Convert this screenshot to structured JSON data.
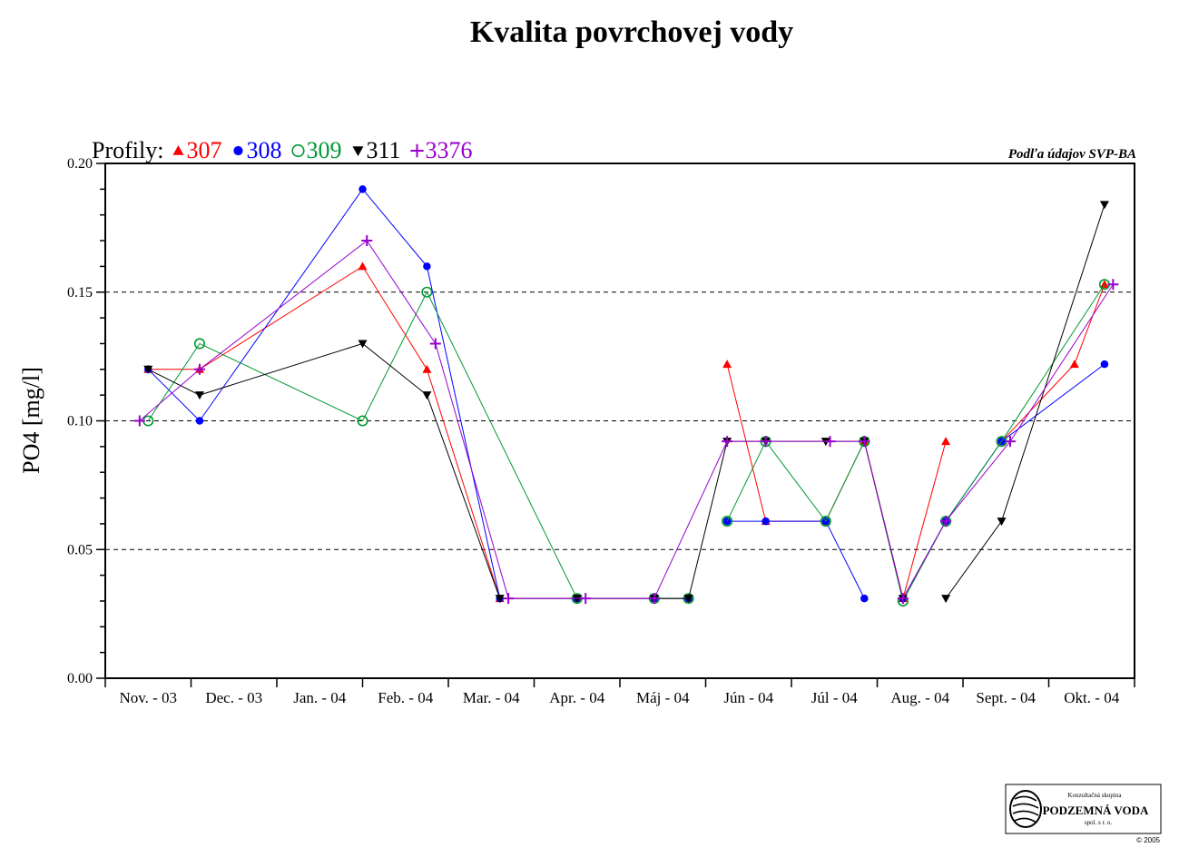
{
  "chart_data": {
    "type": "line",
    "title": "Kvalita povrchovej vody",
    "ylabel": "PO4 [mg/l]",
    "source_note": "Podľa údajov SVP-BA",
    "legend_prefix": "Profily:",
    "ylim": [
      0,
      0.2
    ],
    "yticks": [
      "0.00",
      "0.05",
      "0.10",
      "0.15",
      "0.20"
    ],
    "ytick_values": [
      0,
      0.05,
      0.1,
      0.15,
      0.2
    ],
    "grid": "dashed horizontal at 0.05, 0.10, 0.15",
    "legend_position": "top-left",
    "categories": [
      "Nov. - 03",
      "Dec. - 03",
      "Jan. - 04",
      "Feb. - 04",
      "Mar. - 04",
      "Apr. - 04",
      "Máj - 04",
      "Jún - 04",
      "Júl - 04",
      "Aug. - 04",
      "Sept. - 04",
      "Okt. - 04"
    ],
    "series": [
      {
        "name": "307",
        "color": "#ff0000",
        "marker": "triangle-up",
        "points": [
          {
            "x": 0.5,
            "y": 0.12
          },
          {
            "x": 1.1,
            "y": 0.12
          },
          {
            "x": 3.0,
            "y": 0.16
          },
          {
            "x": 3.75,
            "y": 0.12
          },
          {
            "x": 4.6,
            "y": 0.031
          },
          {
            "x": 5.5,
            "y": 0.031
          },
          {
            "x": 6.4,
            "y": 0.031
          },
          {
            "x": 6.8,
            "y": 0.031
          },
          {
            "x": 7.25,
            "y": 0.122
          },
          {
            "x": 7.7,
            "y": 0.061
          },
          {
            "x": 8.4,
            "y": 0.061
          },
          {
            "x": 8.85,
            "y": 0.092
          },
          {
            "x": 9.3,
            "y": 0.031
          },
          {
            "x": 9.8,
            "y": 0.092
          },
          {
            "x": 10.45,
            "y": 0.092
          },
          {
            "x": 11.3,
            "y": 0.122
          },
          {
            "x": 11.65,
            "y": 0.153
          }
        ],
        "breaks_before": [
          8,
          14
        ]
      },
      {
        "name": "308",
        "color": "#0000ff",
        "marker": "circle-filled",
        "points": [
          {
            "x": 0.5,
            "y": 0.12
          },
          {
            "x": 1.1,
            "y": 0.1
          },
          {
            "x": 3.0,
            "y": 0.19
          },
          {
            "x": 3.75,
            "y": 0.16
          },
          {
            "x": 4.6,
            "y": 0.031
          },
          {
            "x": 5.5,
            "y": 0.031
          },
          {
            "x": 6.4,
            "y": 0.031
          },
          {
            "x": 6.8,
            "y": 0.031
          },
          {
            "x": 7.25,
            "y": 0.061
          },
          {
            "x": 7.7,
            "y": 0.061
          },
          {
            "x": 8.4,
            "y": 0.061
          },
          {
            "x": 8.85,
            "y": 0.031
          },
          {
            "x": 9.3,
            "y": 0.031
          },
          {
            "x": 9.8,
            "y": 0.061
          },
          {
            "x": 10.45,
            "y": 0.092
          },
          {
            "x": 11.65,
            "y": 0.122
          }
        ],
        "breaks_before": [
          8,
          12
        ]
      },
      {
        "name": "309",
        "color": "#009933",
        "marker": "circle-open",
        "points": [
          {
            "x": 0.5,
            "y": 0.1
          },
          {
            "x": 1.1,
            "y": 0.13
          },
          {
            "x": 3.0,
            "y": 0.1
          },
          {
            "x": 3.75,
            "y": 0.15
          },
          {
            "x": 5.5,
            "y": 0.031
          },
          {
            "x": 6.4,
            "y": 0.031
          },
          {
            "x": 6.8,
            "y": 0.031
          },
          {
            "x": 7.25,
            "y": 0.061
          },
          {
            "x": 7.7,
            "y": 0.092
          },
          {
            "x": 8.4,
            "y": 0.061
          },
          {
            "x": 8.85,
            "y": 0.092
          },
          {
            "x": 9.3,
            "y": 0.03
          },
          {
            "x": 9.8,
            "y": 0.061
          },
          {
            "x": 10.45,
            "y": 0.092
          },
          {
            "x": 11.65,
            "y": 0.153
          }
        ],
        "breaks_before": [
          7
        ]
      },
      {
        "name": "311",
        "color": "#000000",
        "marker": "triangle-down",
        "points": [
          {
            "x": 0.5,
            "y": 0.12
          },
          {
            "x": 1.1,
            "y": 0.11
          },
          {
            "x": 3.0,
            "y": 0.13
          },
          {
            "x": 3.75,
            "y": 0.11
          },
          {
            "x": 4.6,
            "y": 0.031
          },
          {
            "x": 5.5,
            "y": 0.031
          },
          {
            "x": 6.4,
            "y": 0.031
          },
          {
            "x": 6.8,
            "y": 0.031
          },
          {
            "x": 7.25,
            "y": 0.092
          },
          {
            "x": 7.7,
            "y": 0.092
          },
          {
            "x": 8.4,
            "y": 0.092
          },
          {
            "x": 8.85,
            "y": 0.092
          },
          {
            "x": 9.3,
            "y": 0.031
          },
          {
            "x": 9.8,
            "y": 0.031
          },
          {
            "x": 10.45,
            "y": 0.061
          },
          {
            "x": 11.65,
            "y": 0.184
          }
        ],
        "breaks_before": [
          13
        ]
      },
      {
        "name": "3376",
        "color": "#9900cc",
        "marker": "plus",
        "points": [
          {
            "x": 0.4,
            "y": 0.1
          },
          {
            "x": 1.1,
            "y": 0.12
          },
          {
            "x": 3.05,
            "y": 0.17
          },
          {
            "x": 3.85,
            "y": 0.13
          },
          {
            "x": 4.7,
            "y": 0.031
          },
          {
            "x": 5.6,
            "y": 0.031
          },
          {
            "x": 6.4,
            "y": 0.031
          },
          {
            "x": 7.25,
            "y": 0.092
          },
          {
            "x": 7.7,
            "y": 0.092
          },
          {
            "x": 8.45,
            "y": 0.092
          },
          {
            "x": 8.85,
            "y": 0.092
          },
          {
            "x": 9.3,
            "y": 0.031
          },
          {
            "x": 9.8,
            "y": 0.061
          },
          {
            "x": 10.55,
            "y": 0.092
          },
          {
            "x": 11.75,
            "y": 0.153
          }
        ],
        "breaks_before": []
      }
    ]
  },
  "logo": {
    "top_text": "Konzultačná skupina",
    "main_text": "PODZEMNÁ VODA",
    "sub_text": "spol. s r. o.",
    "copyright": "© 2005"
  }
}
